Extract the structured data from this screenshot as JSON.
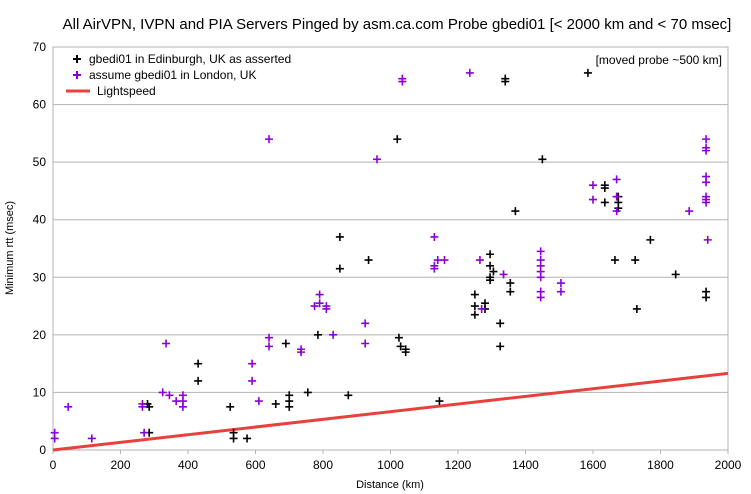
{
  "chart_data": {
    "type": "scatter",
    "title": "All AirVPN, IVPN and PIA Servers Pinged by asm.ca.com Probe gbedi01 [< 2000 km and < 70 msec]",
    "xlabel": "Distance (km)",
    "ylabel": "Minimum rtt (msec)",
    "xlim": [
      0,
      2000
    ],
    "ylim": [
      0,
      70
    ],
    "xticks": [
      0,
      200,
      400,
      600,
      800,
      1000,
      1200,
      1400,
      1600,
      1800,
      2000
    ],
    "yticks": [
      0,
      10,
      20,
      30,
      40,
      50,
      60,
      70
    ],
    "grid": "horizontal",
    "legend_position": "top-left",
    "annotation": "[moved probe ~500 km]",
    "colors": {
      "edinburgh": "#000000",
      "london": "#8B00D8",
      "lightspeed": "#E8413C"
    },
    "series": [
      {
        "name": "gbedi01 in Edinburgh, UK as asserted",
        "marker": "cross",
        "color": "#000000",
        "points": [
          [
            280,
            8
          ],
          [
            285,
            7.5
          ],
          [
            285,
            3
          ],
          [
            430,
            15
          ],
          [
            430,
            12
          ],
          [
            525,
            7.5
          ],
          [
            535,
            2
          ],
          [
            535,
            3
          ],
          [
            575,
            2
          ],
          [
            660,
            8
          ],
          [
            690,
            18.5
          ],
          [
            700,
            9.5
          ],
          [
            700,
            7.5
          ],
          [
            700,
            8.5
          ],
          [
            755,
            10
          ],
          [
            785,
            20
          ],
          [
            850,
            37
          ],
          [
            850,
            31.5
          ],
          [
            875,
            9.5
          ],
          [
            935,
            33
          ],
          [
            1020,
            54
          ],
          [
            1025,
            19.5
          ],
          [
            1030,
            18
          ],
          [
            1045,
            17
          ],
          [
            1045,
            17.5
          ],
          [
            1145,
            8.5
          ],
          [
            1250,
            27
          ],
          [
            1250,
            25
          ],
          [
            1250,
            23.5
          ],
          [
            1280,
            25.5
          ],
          [
            1280,
            24.5
          ],
          [
            1295,
            34
          ],
          [
            1295,
            32
          ],
          [
            1295,
            30
          ],
          [
            1295,
            29.5
          ],
          [
            1305,
            31
          ],
          [
            1325,
            18
          ],
          [
            1325,
            22
          ],
          [
            1340,
            64.5
          ],
          [
            1340,
            64
          ],
          [
            1355,
            29
          ],
          [
            1355,
            27.5
          ],
          [
            1370,
            41.5
          ],
          [
            1450,
            50.5
          ],
          [
            1585,
            65.5
          ],
          [
            1635,
            46
          ],
          [
            1635,
            45.5
          ],
          [
            1635,
            43
          ],
          [
            1665,
            33
          ],
          [
            1675,
            44
          ],
          [
            1675,
            43
          ],
          [
            1675,
            42
          ],
          [
            1725,
            33
          ],
          [
            1730,
            24.5
          ],
          [
            1770,
            36.5
          ],
          [
            1845,
            30.5
          ],
          [
            1935,
            27.5
          ],
          [
            1935,
            26.5
          ]
        ]
      },
      {
        "name": "assume gbedi01 in London, UK",
        "marker": "cross",
        "color": "#8B00D8",
        "points": [
          [
            5,
            3
          ],
          [
            5,
            2
          ],
          [
            45,
            7.5
          ],
          [
            115,
            2
          ],
          [
            265,
            8
          ],
          [
            265,
            7.5
          ],
          [
            270,
            3
          ],
          [
            325,
            10
          ],
          [
            335,
            18.5
          ],
          [
            345,
            9.5
          ],
          [
            365,
            8.5
          ],
          [
            385,
            9.5
          ],
          [
            385,
            8.5
          ],
          [
            385,
            7.5
          ],
          [
            590,
            15
          ],
          [
            590,
            12
          ],
          [
            610,
            8.5
          ],
          [
            640,
            54
          ],
          [
            640,
            19.5
          ],
          [
            640,
            18
          ],
          [
            735,
            17.5
          ],
          [
            735,
            17
          ],
          [
            775,
            25
          ],
          [
            790,
            27
          ],
          [
            790,
            25.5
          ],
          [
            810,
            25
          ],
          [
            810,
            24.5
          ],
          [
            830,
            20
          ],
          [
            925,
            22
          ],
          [
            925,
            18.5
          ],
          [
            960,
            50.5
          ],
          [
            1035,
            64.5
          ],
          [
            1035,
            64
          ],
          [
            1130,
            37
          ],
          [
            1130,
            32
          ],
          [
            1130,
            31.5
          ],
          [
            1140,
            33
          ],
          [
            1160,
            33
          ],
          [
            1235,
            65.5
          ],
          [
            1265,
            33
          ],
          [
            1270,
            24.5
          ],
          [
            1335,
            30.5
          ],
          [
            1445,
            34.5
          ],
          [
            1445,
            33
          ],
          [
            1445,
            32
          ],
          [
            1445,
            31
          ],
          [
            1445,
            30
          ],
          [
            1445,
            27.5
          ],
          [
            1445,
            26.5
          ],
          [
            1505,
            29
          ],
          [
            1505,
            27.5
          ],
          [
            1600,
            46
          ],
          [
            1600,
            43.5
          ],
          [
            1670,
            47
          ],
          [
            1670,
            44
          ],
          [
            1670,
            41.5
          ],
          [
            1885,
            41.5
          ],
          [
            1935,
            54
          ],
          [
            1935,
            52.5
          ],
          [
            1935,
            52
          ],
          [
            1935,
            47.5
          ],
          [
            1935,
            46.5
          ],
          [
            1935,
            44
          ],
          [
            1935,
            43.5
          ],
          [
            1935,
            43
          ],
          [
            1940,
            36.5
          ]
        ]
      },
      {
        "name": "Lightspeed",
        "type": "line",
        "color": "#E8413C",
        "points": [
          [
            0,
            0
          ],
          [
            2000,
            13.3
          ]
        ]
      }
    ]
  }
}
